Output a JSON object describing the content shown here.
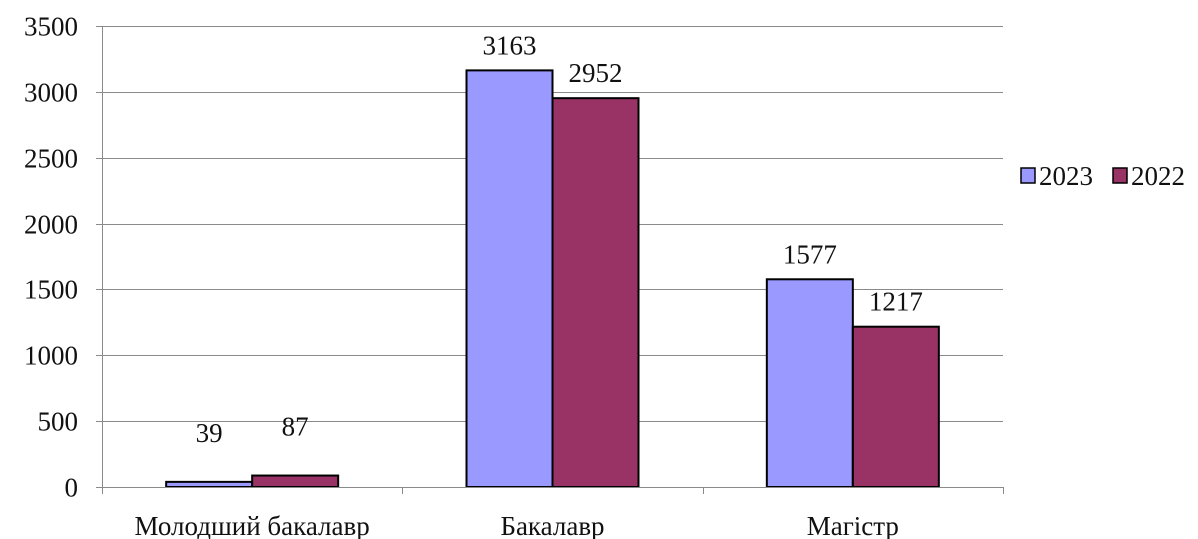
{
  "chart_data": {
    "type": "bar",
    "categories": [
      "Молодший бакалавр",
      "Бакалавр",
      "Магістр"
    ],
    "series": [
      {
        "name": "2023",
        "values": [
          39,
          3163,
          1577
        ],
        "color": "#9999ff",
        "data_labels": [
          "39",
          "3163",
          "1577"
        ]
      },
      {
        "name": "2022",
        "values": [
          87,
          2952,
          1217
        ],
        "color": "#993366",
        "data_labels": [
          "87",
          "2952",
          "1217"
        ]
      }
    ],
    "ylim": [
      0,
      3500
    ],
    "y_ticks": [
      0,
      500,
      1000,
      1500,
      2000,
      2500,
      3000,
      3500
    ],
    "y_tick_labels": [
      "0",
      "500",
      "1000",
      "1500",
      "2000",
      "2500",
      "3000",
      "3500"
    ],
    "grid": true,
    "legend_position": "right",
    "title": "",
    "xlabel": "",
    "ylabel": ""
  }
}
